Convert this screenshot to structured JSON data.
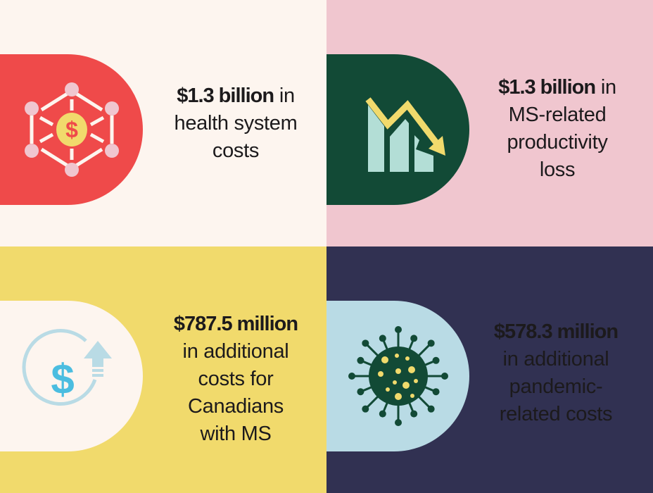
{
  "colors": {
    "q1_bg": "#fdf5ef",
    "q2_bg": "#f0c6cf",
    "q3_bg": "#f1da6c",
    "q4_bg": "#313152",
    "red": "#ef4a4a",
    "dark_green": "#124a36",
    "light_blue": "#b9dbe5",
    "yellow": "#f1da6c"
  },
  "stats": [
    {
      "amount": "$1.3 billion",
      "rest_inline": " in",
      "rest": "health system costs",
      "icon": "network-dollar-icon"
    },
    {
      "amount": "$1.3 billion",
      "rest_inline": " in",
      "rest": "MS-related productivity loss",
      "icon": "declining-chart-icon"
    },
    {
      "amount": "$787.5 million",
      "rest_inline": "",
      "rest": "in additional costs for Canadians with MS",
      "icon": "dollar-increase-icon"
    },
    {
      "amount": "$578.3 million",
      "rest_inline": "",
      "rest": "in additional pandemic-related costs",
      "icon": "virus-icon"
    }
  ]
}
